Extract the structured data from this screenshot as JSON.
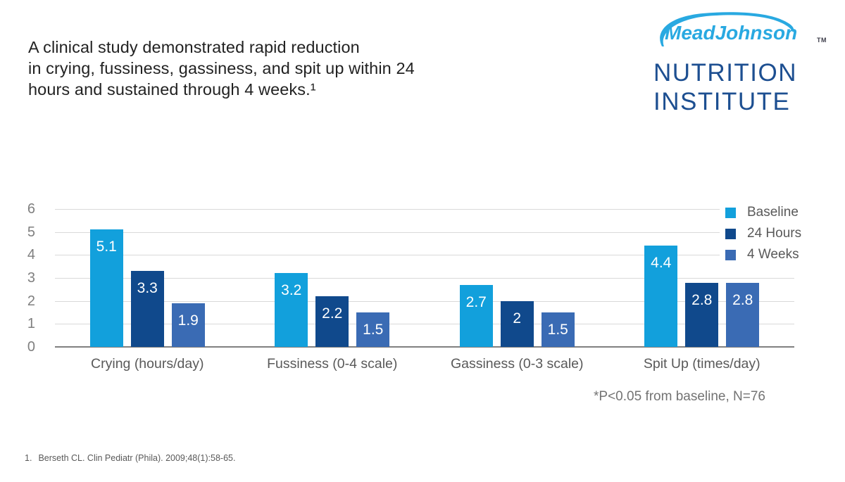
{
  "headline": {
    "lines": [
      "A clinical study demonstrated rapid reduction",
      "in crying, fussiness, gassiness, and spit up within 24",
      "hours and sustained through 4 weeks.¹"
    ]
  },
  "logo": {
    "script": "MeadJohnson",
    "tm": "TM",
    "line1": "NUTRITION",
    "line2": "INSTITUTE",
    "script_color": "#29A9E1",
    "navy_color": "#1D4F91"
  },
  "chart_data": {
    "type": "bar",
    "title": "",
    "categories": [
      "Crying (hours/day)",
      "Fussiness (0-4 scale)",
      "Gassiness (0-3 scale)",
      "Spit Up (times/day)"
    ],
    "series": [
      {
        "name": "Baseline",
        "color": "#12A0DC",
        "values": [
          5.1,
          3.2,
          2.7,
          4.4
        ],
        "labels": [
          "5.1",
          "3.2",
          "2.7",
          "4.4"
        ]
      },
      {
        "name": "24 Hours",
        "color": "#10498C",
        "values": [
          3.3,
          2.2,
          2.0,
          2.8
        ],
        "labels": [
          "3.3",
          "2.2",
          "2",
          "2.8"
        ]
      },
      {
        "name": "4 Weeks",
        "color": "#3A6BB4",
        "values": [
          1.9,
          1.5,
          1.5,
          2.8
        ],
        "labels": [
          "1.9",
          "1.5",
          "1.5",
          "2.8"
        ]
      }
    ],
    "ylim": [
      0,
      6
    ],
    "yticks": [
      0,
      1,
      2,
      3,
      4,
      5,
      6
    ],
    "grid": true,
    "legend_position": "top-right",
    "gridline_color": "#d9d9d9",
    "axis_color": "#808080"
  },
  "note": "*P<0.05 from baseline, N=76",
  "footnote": {
    "index": "1.",
    "text": "Berseth CL. Clin Pediatr (Phila). 2009;48(1):58-65."
  }
}
